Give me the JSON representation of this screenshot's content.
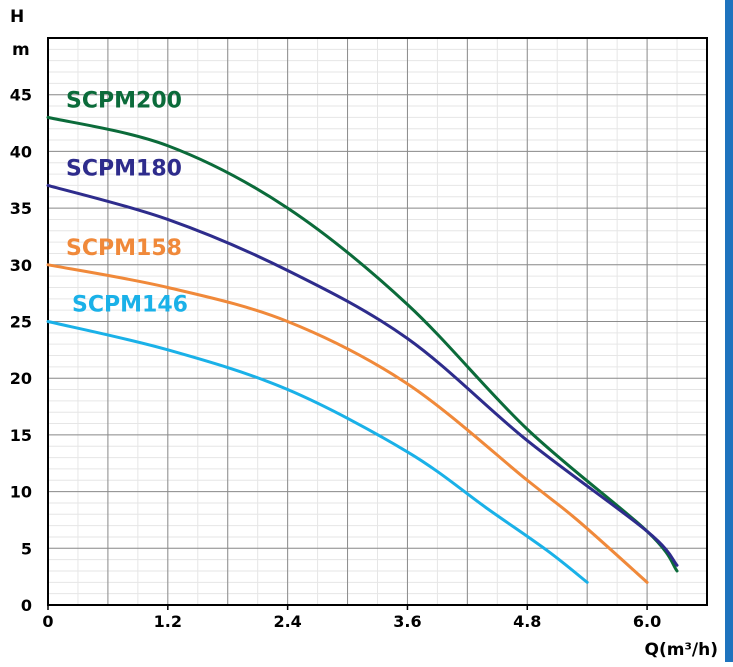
{
  "chart_data": {
    "type": "line",
    "title": "",
    "ylabel_line1": "H",
    "ylabel_line2": "m",
    "xlabel": "Q(m³/h)",
    "xlim": [
      0,
      6.6
    ],
    "ylim": [
      0,
      50
    ],
    "x_ticks": [
      "0",
      "1.2",
      "2.4",
      "3.6",
      "4.8",
      "6.0"
    ],
    "x_tick_values": [
      0,
      1.2,
      2.4,
      3.6,
      4.8,
      6.0
    ],
    "y_ticks": [
      "0",
      "5",
      "10",
      "15",
      "20",
      "25",
      "30",
      "35",
      "40",
      "45"
    ],
    "y_tick_values": [
      0,
      5,
      10,
      15,
      20,
      25,
      30,
      35,
      40,
      45
    ],
    "grid": true,
    "legend": "inline labels",
    "series": [
      {
        "name": "SCPM200",
        "color": "#0b6b3a",
        "x": [
          0,
          1.2,
          2.4,
          3.6,
          4.8,
          6.0,
          6.3
        ],
        "y": [
          43,
          40.5,
          35,
          26.5,
          15.5,
          6.5,
          3
        ]
      },
      {
        "name": "SCPM180",
        "color": "#2e2c8c",
        "x": [
          0,
          1.2,
          2.4,
          3.6,
          4.8,
          6.0,
          6.3
        ],
        "y": [
          37,
          34,
          29.5,
          23.5,
          14.5,
          6.5,
          3.5
        ]
      },
      {
        "name": "SCPM158",
        "color": "#f0893a",
        "x": [
          0,
          1.2,
          2.4,
          3.6,
          4.8,
          5.3,
          6.0
        ],
        "y": [
          30,
          28,
          25,
          19.5,
          11,
          7.5,
          2
        ]
      },
      {
        "name": "SCPM146",
        "color": "#1ab1e8",
        "x": [
          0,
          1.2,
          2.4,
          3.6,
          4.4,
          5.0,
          5.4
        ],
        "y": [
          25,
          22.5,
          19,
          13.5,
          8.5,
          4.8,
          2
        ]
      }
    ]
  }
}
